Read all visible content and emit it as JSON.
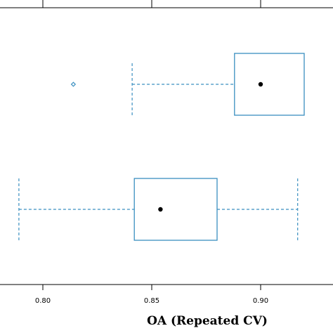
{
  "chart_data": {
    "type": "boxplot",
    "xlabel": "OA (Repeated CV)",
    "xlim": [
      0.785,
      0.935
    ],
    "xticks": [
      0.8,
      0.85,
      0.9
    ],
    "xtick_labels": [
      "0.80",
      "0.85",
      "0.90"
    ],
    "grid": false,
    "colors": {
      "box": "#3a8fc0",
      "median": "#000000"
    },
    "boxes": [
      {
        "position": "top",
        "q1": 0.888,
        "median": 0.9,
        "q3": 0.92,
        "whisker_low": 0.841,
        "whisker_high": 0.92,
        "outliers": [
          0.814
        ]
      },
      {
        "position": "bottom",
        "q1": 0.842,
        "median": 0.854,
        "q3": 0.88,
        "whisker_low": 0.789,
        "whisker_high": 0.917,
        "outliers": []
      }
    ]
  }
}
